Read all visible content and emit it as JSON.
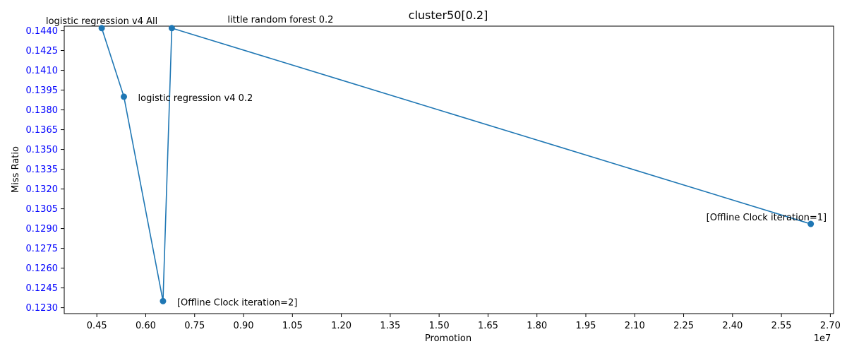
{
  "chart_data": {
    "type": "line",
    "title": "cluster50[0.2]",
    "xlabel": "Promotion",
    "ylabel": "Miss Ratio",
    "x_offset_label": "1e7",
    "x_scale": 10000000,
    "xlim": [
      0.35,
      2.71
    ],
    "ylim": [
      0.12255,
      0.14435
    ],
    "x_ticks": [
      0.45,
      0.6,
      0.75,
      0.9,
      1.05,
      1.2,
      1.35,
      1.5,
      1.65,
      1.8,
      1.95,
      2.1,
      2.25,
      2.4,
      2.55,
      2.7
    ],
    "x_tick_labels": [
      "0.45",
      "0.60",
      "0.75",
      "0.90",
      "1.05",
      "1.20",
      "1.35",
      "1.50",
      "1.65",
      "1.80",
      "1.95",
      "2.10",
      "2.25",
      "2.40",
      "2.55",
      "2.70"
    ],
    "y_ticks": [
      0.123,
      0.1245,
      0.126,
      0.1275,
      0.129,
      0.1305,
      0.132,
      0.1335,
      0.135,
      0.1365,
      0.138,
      0.1395,
      0.141,
      0.1425,
      0.144
    ],
    "y_tick_labels": [
      "0.1230",
      "0.1245",
      "0.1260",
      "0.1275",
      "0.1290",
      "0.1305",
      "0.1320",
      "0.1335",
      "0.1350",
      "0.1365",
      "0.1380",
      "0.1395",
      "0.1410",
      "0.1425",
      "0.1440"
    ],
    "y_tick_color": "#0000ff",
    "grid": false,
    "series": [
      {
        "color": "#1f77b4",
        "marker": "circle",
        "x": [
          0.465,
          0.533,
          0.653,
          0.68,
          2.64
        ],
        "y": [
          0.1442,
          0.139,
          0.1235,
          0.1442,
          0.12935
        ],
        "labels": [
          "logistic regression v4 All",
          "logistic regression v4 0.2",
          "[Offline Clock iteration=2]",
          "little random forest 0.2",
          "[Offline Clock iteration=1]"
        ],
        "label_placement": [
          "above",
          "right",
          "right",
          "above-right",
          "above-left"
        ]
      }
    ]
  }
}
